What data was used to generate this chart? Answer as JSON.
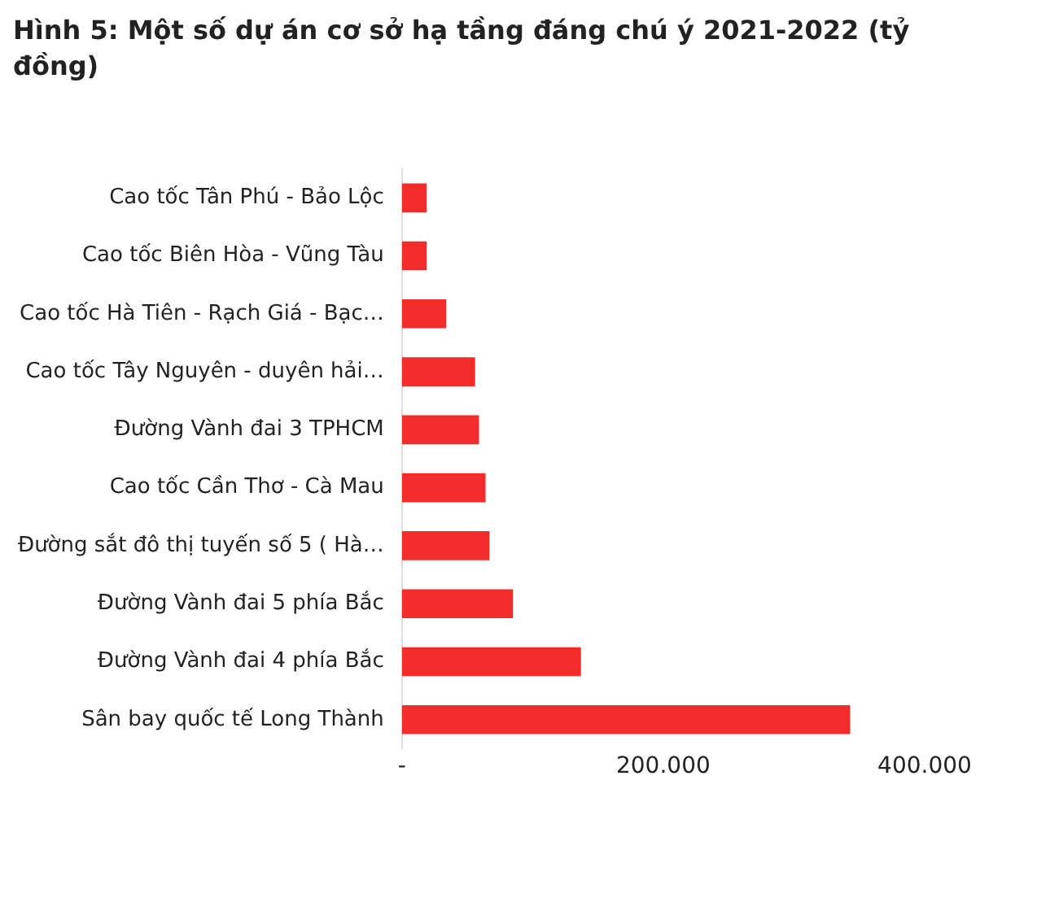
{
  "chart_data": {
    "type": "bar",
    "orientation": "horizontal",
    "title": "Hình 5: Một số dự án cơ sở hạ tầng đáng chú ý 2021-2022 (tỷ đồng)",
    "categories": [
      "Cao tốc Tân Phú - Bảo Lộc",
      "Cao tốc Biên Hòa - Vũng Tàu",
      "Cao tốc Hà Tiên - Rạch Giá - Bạc…",
      "Cao tốc Tây Nguyên - duyên hải…",
      "Đường Vành đai 3 TPHCM",
      "Cao tốc Cần Thơ - Cà Mau",
      "Đường sắt đô thị tuyến số 5 ( Hà…",
      "Đường Vành đai 5 phía Bắc",
      "Đường Vành đai 4 phía Bắc",
      "Sân bay quốc tế Long Thành"
    ],
    "values": [
      19000,
      19000,
      34000,
      56000,
      59000,
      64000,
      67000,
      85000,
      137000,
      343000
    ],
    "color": "#f22b2b",
    "xlim": [
      0,
      400000
    ],
    "xticks": [
      {
        "value": 0,
        "label": "-"
      },
      {
        "value": 200000,
        "label": "200.000"
      },
      {
        "value": 400000,
        "label": "400.000"
      }
    ],
    "grid": false,
    "legend": false
  }
}
